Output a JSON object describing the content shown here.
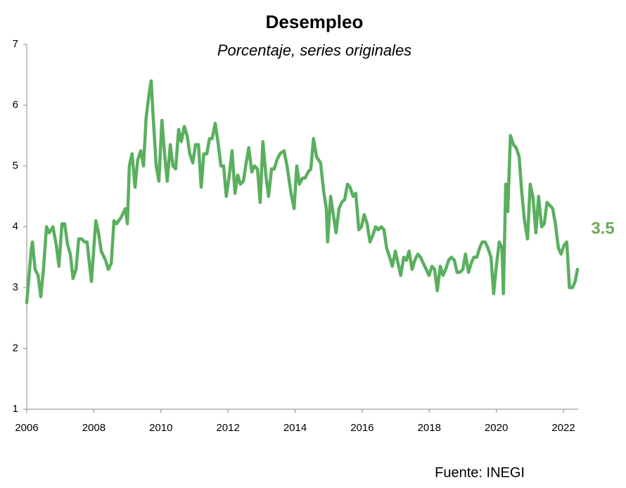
{
  "chart_data": {
    "type": "line",
    "title": "Desempleo",
    "subtitle": "Porcentaje, series originales",
    "annotation": "3.5",
    "source": "Fuente: INEGI",
    "xlim": [
      2006,
      2022.44
    ],
    "xticks": [
      2006,
      2008,
      2010,
      2012,
      2014,
      2016,
      2018,
      2020,
      2022
    ],
    "ylim": [
      1,
      7
    ],
    "yticks": [
      1,
      2,
      3,
      4,
      5,
      6,
      7
    ],
    "grid": false,
    "series": [
      {
        "color": "#5aaf5e",
        "x": [
          2006.0,
          2006.13,
          2006.17,
          2006.25,
          2006.34,
          2006.42,
          2006.5,
          2006.59,
          2006.67,
          2006.78,
          2006.88,
          2006.96,
          2007.05,
          2007.13,
          2007.22,
          2007.3,
          2007.38,
          2007.47,
          2007.55,
          2007.64,
          2007.72,
          2007.8,
          2007.93,
          2008.06,
          2008.14,
          2008.22,
          2008.35,
          2008.43,
          2008.52,
          2008.6,
          2008.68,
          2008.81,
          2008.94,
          2009.0,
          2009.06,
          2009.14,
          2009.23,
          2009.31,
          2009.4,
          2009.48,
          2009.56,
          2009.65,
          2009.71,
          2009.77,
          2009.86,
          2009.94,
          2010.03,
          2010.11,
          2010.19,
          2010.28,
          2010.36,
          2010.44,
          2010.53,
          2010.61,
          2010.7,
          2010.78,
          2010.86,
          2010.95,
          2011.03,
          2011.12,
          2011.2,
          2011.28,
          2011.37,
          2011.45,
          2011.53,
          2011.62,
          2011.7,
          2011.79,
          2011.87,
          2011.95,
          2012.04,
          2012.12,
          2012.21,
          2012.29,
          2012.37,
          2012.46,
          2012.54,
          2012.62,
          2012.71,
          2012.79,
          2012.88,
          2012.96,
          2013.04,
          2013.13,
          2013.21,
          2013.3,
          2013.38,
          2013.46,
          2013.55,
          2013.67,
          2013.76,
          2013.88,
          2013.97,
          2014.05,
          2014.13,
          2014.22,
          2014.3,
          2014.39,
          2014.47,
          2014.55,
          2014.64,
          2014.76,
          2014.85,
          2014.93,
          2014.97,
          2015.06,
          2015.14,
          2015.22,
          2015.31,
          2015.39,
          2015.48,
          2015.56,
          2015.64,
          2015.73,
          2015.81,
          2015.9,
          2015.98,
          2016.06,
          2016.15,
          2016.23,
          2016.31,
          2016.4,
          2016.48,
          2016.57,
          2016.65,
          2016.73,
          2016.82,
          2016.9,
          2016.99,
          2017.07,
          2017.15,
          2017.24,
          2017.32,
          2017.4,
          2017.49,
          2017.57,
          2017.66,
          2017.74,
          2017.82,
          2017.91,
          2017.99,
          2018.08,
          2018.16,
          2018.24,
          2018.33,
          2018.41,
          2018.49,
          2018.58,
          2018.66,
          2018.75,
          2018.83,
          2018.91,
          2019.0,
          2019.08,
          2019.17,
          2019.25,
          2019.33,
          2019.42,
          2019.5,
          2019.58,
          2019.67,
          2019.75,
          2019.84,
          2019.92,
          2020.0,
          2020.09,
          2020.17,
          2020.21,
          2020.28,
          2020.34,
          2020.42,
          2020.51,
          2020.59,
          2020.68,
          2020.76,
          2020.84,
          2020.93,
          2021.01,
          2021.09,
          2021.18,
          2021.26,
          2021.35,
          2021.43,
          2021.51,
          2021.6,
          2021.68,
          2021.76,
          2021.85,
          2021.93,
          2022.02,
          2022.1,
          2022.18,
          2022.27,
          2022.35,
          2022.42
        ],
        "values": [
          2.75,
          3.6,
          3.75,
          3.3,
          3.2,
          2.85,
          3.3,
          4.0,
          3.9,
          4.0,
          3.7,
          3.35,
          4.05,
          4.05,
          3.7,
          3.55,
          3.15,
          3.3,
          3.8,
          3.8,
          3.75,
          3.75,
          3.1,
          4.1,
          3.9,
          3.6,
          3.45,
          3.3,
          3.4,
          4.1,
          4.05,
          4.15,
          4.3,
          4.05,
          5.0,
          5.2,
          4.65,
          5.1,
          5.25,
          5.0,
          5.8,
          6.2,
          6.4,
          5.8,
          5.0,
          4.75,
          5.75,
          5.2,
          4.75,
          5.35,
          5.0,
          4.95,
          5.6,
          5.4,
          5.65,
          5.5,
          5.2,
          5.05,
          5.35,
          5.35,
          4.65,
          5.2,
          5.2,
          5.45,
          5.45,
          5.7,
          5.4,
          5.0,
          5.0,
          4.5,
          4.85,
          5.25,
          4.55,
          4.85,
          4.7,
          4.75,
          5.05,
          5.3,
          4.9,
          5.0,
          4.95,
          4.4,
          5.4,
          4.85,
          4.5,
          4.95,
          4.95,
          5.1,
          5.2,
          5.25,
          5.0,
          4.55,
          4.3,
          5.0,
          4.7,
          4.8,
          4.8,
          4.9,
          4.95,
          5.45,
          5.15,
          5.05,
          4.6,
          4.3,
          3.75,
          4.5,
          4.2,
          3.9,
          4.3,
          4.4,
          4.45,
          4.7,
          4.65,
          4.5,
          4.55,
          3.95,
          4.0,
          4.2,
          4.05,
          3.75,
          3.85,
          4.0,
          3.95,
          4.0,
          3.95,
          3.65,
          3.5,
          3.35,
          3.6,
          3.4,
          3.2,
          3.5,
          3.45,
          3.6,
          3.3,
          3.45,
          3.55,
          3.5,
          3.4,
          3.3,
          3.2,
          3.35,
          3.3,
          2.95,
          3.35,
          3.2,
          3.3,
          3.45,
          3.5,
          3.45,
          3.25,
          3.25,
          3.3,
          3.55,
          3.25,
          3.4,
          3.5,
          3.5,
          3.65,
          3.75,
          3.75,
          3.65,
          3.5,
          2.9,
          3.35,
          3.75,
          3.65,
          2.9,
          4.7,
          4.25,
          5.5,
          5.35,
          5.3,
          5.15,
          4.55,
          4.1,
          3.8,
          4.7,
          4.5,
          3.9,
          4.5,
          4.0,
          4.05,
          4.4,
          4.35,
          4.3,
          4.05,
          3.65,
          3.55,
          3.7,
          3.75,
          3.0,
          3.0,
          3.1,
          3.3
        ]
      }
    ]
  }
}
